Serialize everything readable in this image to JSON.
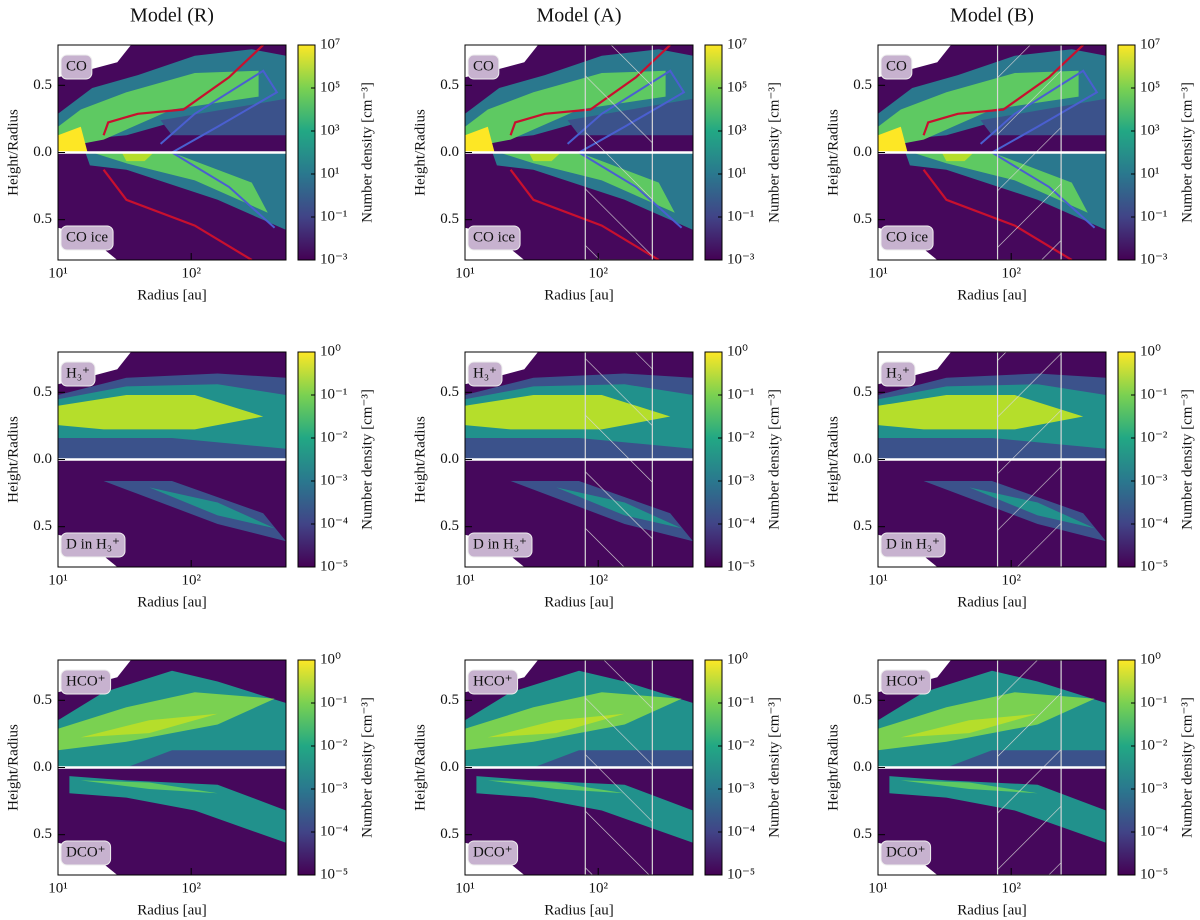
{
  "chart_data": [
    {
      "type": "contour",
      "title": "Model (R)",
      "top_label": "CO",
      "bottom_label": "CO ice",
      "xlabel": "Radius [au]",
      "ylabel": "Height/Radius",
      "xscale": "log",
      "xlim": [
        10,
        515
      ],
      "ylim": [
        -0.8,
        0.8
      ],
      "xticks": [
        {
          "value": 10,
          "label": "10¹"
        },
        {
          "value": 100,
          "label": "10²"
        }
      ],
      "yticks": [
        {
          "value": 0.5,
          "label": "0.5"
        },
        {
          "value": 0,
          "label": "0.0"
        },
        {
          "value": -0.5,
          "label": "0.5"
        }
      ],
      "cscale": "log",
      "clim": [
        0.001,
        10000000
      ],
      "cticks": [
        {
          "value": 0.001,
          "label": "10⁻³"
        },
        {
          "value": 0.1,
          "label": "10⁻¹"
        },
        {
          "value": 10,
          "label": "10¹"
        },
        {
          "value": 1000,
          "label": "10³"
        },
        {
          "value": 100000,
          "label": "10⁵"
        },
        {
          "value": 10000000,
          "label": "10⁷"
        }
      ],
      "clabel": "Number density [cm⁻³]"
    },
    {
      "type": "contour",
      "title": "Model (A)",
      "top_label": "CO",
      "bottom_label": "CO ice",
      "xlabel": "Radius [au]",
      "ylabel": "Height/Radius",
      "xscale": "log",
      "xlim": [
        10,
        515
      ],
      "ylim": [
        -0.8,
        0.8
      ],
      "xticks": [
        {
          "value": 10,
          "label": "10¹"
        },
        {
          "value": 100,
          "label": "10²"
        }
      ],
      "yticks": [
        {
          "value": 0.5,
          "label": "0.5"
        },
        {
          "value": 0,
          "label": "0.0"
        },
        {
          "value": -0.5,
          "label": "0.5"
        }
      ],
      "cscale": "log",
      "clim": [
        0.001,
        10000000
      ],
      "cticks": [
        {
          "value": 0.001,
          "label": "10⁻³"
        },
        {
          "value": 0.1,
          "label": "10⁻¹"
        },
        {
          "value": 10,
          "label": "10¹"
        },
        {
          "value": 1000,
          "label": "10³"
        },
        {
          "value": 100000,
          "label": "10⁵"
        },
        {
          "value": 10000000,
          "label": "10⁷"
        }
      ],
      "clabel": "Number density [cm⁻³]",
      "hatch": [
        80,
        255
      ]
    },
    {
      "type": "contour",
      "title": "Model (B)",
      "top_label": "CO",
      "bottom_label": "CO ice",
      "xlabel": "Radius [au]",
      "ylabel": "Height/Radius",
      "xscale": "log",
      "xlim": [
        10,
        515
      ],
      "ylim": [
        -0.8,
        0.8
      ],
      "xticks": [
        {
          "value": 10,
          "label": "10¹"
        },
        {
          "value": 100,
          "label": "10²"
        }
      ],
      "yticks": [
        {
          "value": 0.5,
          "label": "0.5"
        },
        {
          "value": 0,
          "label": "0.0"
        },
        {
          "value": -0.5,
          "label": "0.5"
        }
      ],
      "cscale": "log",
      "clim": [
        0.001,
        10000000
      ],
      "cticks": [
        {
          "value": 0.001,
          "label": "10⁻³"
        },
        {
          "value": 0.1,
          "label": "10⁻¹"
        },
        {
          "value": 10,
          "label": "10¹"
        },
        {
          "value": 1000,
          "label": "10³"
        },
        {
          "value": 100000,
          "label": "10⁵"
        },
        {
          "value": 10000000,
          "label": "10⁷"
        }
      ],
      "clabel": "Number density [cm⁻³]",
      "hatch": [
        79,
        237
      ]
    },
    {
      "type": "contour",
      "top_label": "H₃⁺",
      "bottom_label": "D in H₃⁺",
      "xlabel": "Radius [au]",
      "ylabel": "Height/Radius",
      "xscale": "log",
      "xlim": [
        10,
        515
      ],
      "ylim": [
        -0.8,
        0.8
      ],
      "xticks": [
        {
          "value": 10,
          "label": "10¹"
        },
        {
          "value": 100,
          "label": "10²"
        }
      ],
      "yticks": [
        {
          "value": 0.5,
          "label": "0.5"
        },
        {
          "value": 0,
          "label": "0.0"
        },
        {
          "value": -0.5,
          "label": "0.5"
        }
      ],
      "cscale": "log",
      "clim": [
        1e-05,
        1
      ],
      "cticks": [
        {
          "value": 1e-05,
          "label": "10⁻⁵"
        },
        {
          "value": 0.0001,
          "label": "10⁻⁴"
        },
        {
          "value": 0.001,
          "label": "10⁻³"
        },
        {
          "value": 0.01,
          "label": "10⁻²"
        },
        {
          "value": 0.1,
          "label": "10⁻¹"
        },
        {
          "value": 1,
          "label": "10⁰"
        }
      ],
      "clabel": "Number density [cm⁻³]"
    },
    {
      "type": "contour",
      "top_label": "H₃⁺",
      "bottom_label": "D in H₃⁺",
      "xlabel": "Radius [au]",
      "ylabel": "Height/Radius",
      "xscale": "log",
      "xlim": [
        10,
        515
      ],
      "ylim": [
        -0.8,
        0.8
      ],
      "xticks": [
        {
          "value": 10,
          "label": "10¹"
        },
        {
          "value": 100,
          "label": "10²"
        }
      ],
      "yticks": [
        {
          "value": 0.5,
          "label": "0.5"
        },
        {
          "value": 0,
          "label": "0.0"
        },
        {
          "value": -0.5,
          "label": "0.5"
        }
      ],
      "cscale": "log",
      "clim": [
        1e-05,
        1
      ],
      "cticks": [
        {
          "value": 1e-05,
          "label": "10⁻⁵"
        },
        {
          "value": 0.0001,
          "label": "10⁻⁴"
        },
        {
          "value": 0.001,
          "label": "10⁻³"
        },
        {
          "value": 0.01,
          "label": "10⁻²"
        },
        {
          "value": 0.1,
          "label": "10⁻¹"
        },
        {
          "value": 1,
          "label": "10⁰"
        }
      ],
      "clabel": "Number density [cm⁻³]",
      "hatch": [
        80,
        255
      ]
    },
    {
      "type": "contour",
      "top_label": "H₃⁺",
      "bottom_label": "D in H₃⁺",
      "xlabel": "Radius [au]",
      "ylabel": "Height/Radius",
      "xscale": "log",
      "xlim": [
        10,
        515
      ],
      "ylim": [
        -0.8,
        0.8
      ],
      "xticks": [
        {
          "value": 10,
          "label": "10¹"
        },
        {
          "value": 100,
          "label": "10²"
        }
      ],
      "yticks": [
        {
          "value": 0.5,
          "label": "0.5"
        },
        {
          "value": 0,
          "label": "0.0"
        },
        {
          "value": -0.5,
          "label": "0.5"
        }
      ],
      "cscale": "log",
      "clim": [
        1e-05,
        1
      ],
      "cticks": [
        {
          "value": 1e-05,
          "label": "10⁻⁵"
        },
        {
          "value": 0.0001,
          "label": "10⁻⁴"
        },
        {
          "value": 0.001,
          "label": "10⁻³"
        },
        {
          "value": 0.01,
          "label": "10⁻²"
        },
        {
          "value": 0.1,
          "label": "10⁻¹"
        },
        {
          "value": 1,
          "label": "10⁰"
        }
      ],
      "clabel": "Number density [cm⁻³]",
      "hatch": [
        79,
        237
      ]
    },
    {
      "type": "contour",
      "top_label": "HCO⁺",
      "bottom_label": "DCO⁺",
      "xlabel": "Radius [au]",
      "ylabel": "Height/Radius",
      "xscale": "log",
      "xlim": [
        10,
        515
      ],
      "ylim": [
        -0.8,
        0.8
      ],
      "xticks": [
        {
          "value": 10,
          "label": "10¹"
        },
        {
          "value": 100,
          "label": "10²"
        }
      ],
      "yticks": [
        {
          "value": 0.5,
          "label": "0.5"
        },
        {
          "value": 0,
          "label": "0.0"
        },
        {
          "value": -0.5,
          "label": "0.5"
        }
      ],
      "cscale": "log",
      "clim": [
        1e-05,
        1
      ],
      "cticks": [
        {
          "value": 1e-05,
          "label": "10⁻⁵"
        },
        {
          "value": 0.0001,
          "label": "10⁻⁴"
        },
        {
          "value": 0.001,
          "label": "10⁻³"
        },
        {
          "value": 0.01,
          "label": "10⁻²"
        },
        {
          "value": 0.1,
          "label": "10⁻¹"
        },
        {
          "value": 1,
          "label": "10⁰"
        }
      ],
      "clabel": "Number density [cm⁻³]"
    },
    {
      "type": "contour",
      "top_label": "HCO⁺",
      "bottom_label": "DCO⁺",
      "xlabel": "Radius [au]",
      "ylabel": "Height/Radius",
      "xscale": "log",
      "xlim": [
        10,
        515
      ],
      "ylim": [
        -0.8,
        0.8
      ],
      "xticks": [
        {
          "value": 10,
          "label": "10¹"
        },
        {
          "value": 100,
          "label": "10²"
        }
      ],
      "yticks": [
        {
          "value": 0.5,
          "label": "0.5"
        },
        {
          "value": 0,
          "label": "0.0"
        },
        {
          "value": -0.5,
          "label": "0.5"
        }
      ],
      "cscale": "log",
      "clim": [
        1e-05,
        1
      ],
      "cticks": [
        {
          "value": 1e-05,
          "label": "10⁻⁵"
        },
        {
          "value": 0.0001,
          "label": "10⁻⁴"
        },
        {
          "value": 0.001,
          "label": "10⁻³"
        },
        {
          "value": 0.01,
          "label": "10⁻²"
        },
        {
          "value": 0.1,
          "label": "10⁻¹"
        },
        {
          "value": 1,
          "label": "10⁰"
        }
      ],
      "clabel": "Number density [cm⁻³]",
      "hatch": [
        80,
        255
      ]
    },
    {
      "type": "contour",
      "top_label": "HCO⁺",
      "bottom_label": "DCO⁺",
      "xlabel": "Radius [au]",
      "ylabel": "Height/Radius",
      "xscale": "log",
      "xlim": [
        10,
        515
      ],
      "ylim": [
        -0.8,
        0.8
      ],
      "xticks": [
        {
          "value": 10,
          "label": "10¹"
        },
        {
          "value": 100,
          "label": "10²"
        }
      ],
      "yticks": [
        {
          "value": 0.5,
          "label": "0.5"
        },
        {
          "value": 0,
          "label": "0.0"
        },
        {
          "value": -0.5,
          "label": "0.5"
        }
      ],
      "cscale": "log",
      "clim": [
        1e-05,
        1
      ],
      "cticks": [
        {
          "value": 1e-05,
          "label": "10⁻⁵"
        },
        {
          "value": 0.0001,
          "label": "10⁻⁴"
        },
        {
          "value": 0.001,
          "label": "10⁻³"
        },
        {
          "value": 0.01,
          "label": "10⁻²"
        },
        {
          "value": 0.1,
          "label": "10⁻¹"
        },
        {
          "value": 1,
          "label": "10⁰"
        }
      ],
      "clabel": "Number density [cm⁻³]",
      "hatch": [
        79,
        237
      ]
    }
  ]
}
